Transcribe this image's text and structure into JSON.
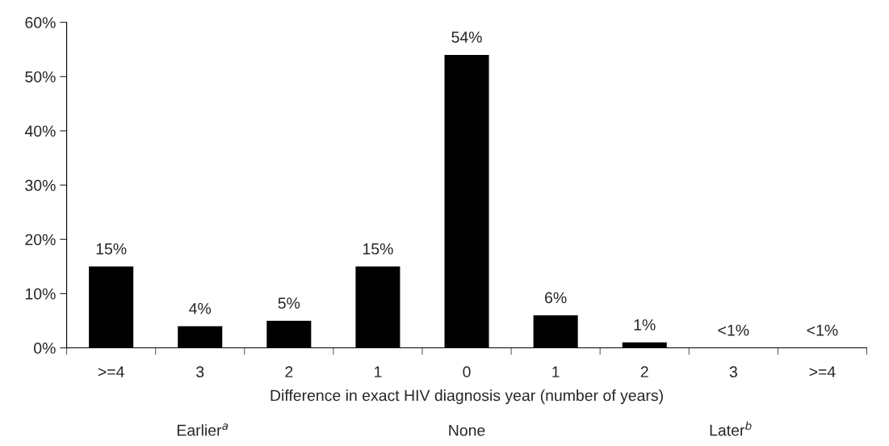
{
  "chart_data": {
    "type": "bar",
    "categories": [
      ">=4",
      "3",
      "2",
      "1",
      "0",
      "1",
      "2",
      "3",
      ">=4"
    ],
    "values": [
      15,
      4,
      5,
      15,
      54,
      6,
      1,
      0,
      0
    ],
    "value_labels": [
      "15%",
      "4%",
      "5%",
      "15%",
      "54%",
      "6%",
      "1%",
      "<1%",
      "<1%"
    ],
    "color": "#000000",
    "xlabel": "Difference in exact HIV diagnosis year (number of years)",
    "annotations": [
      "Earlier$^{a}$",
      "None",
      "Later$^{b}$"
    ],
    "ylim": [
      0,
      60
    ],
    "yticks": [
      {
        "value": 0,
        "label": "0%"
      },
      {
        "value": 10,
        "label": "10%"
      },
      {
        "value": 20,
        "label": "20%"
      },
      {
        "value": 30,
        "label": "30%"
      },
      {
        "value": 40,
        "label": "40%"
      },
      {
        "value": 50,
        "label": "50%"
      },
      {
        "value": 60,
        "label": "60%"
      }
    ],
    "grid": false
  }
}
